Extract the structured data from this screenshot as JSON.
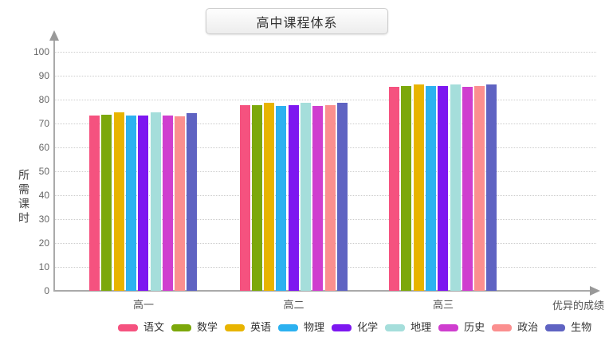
{
  "header": {
    "title": "高中课程体系"
  },
  "chart_data": {
    "type": "bar",
    "title": "高中课程体系",
    "xlabel": "优异的成绩",
    "ylabel": "所需课时",
    "categories": [
      "高一",
      "高二",
      "高三"
    ],
    "series": [
      {
        "name": "语文",
        "color": "#F5527F",
        "values": [
          73.4,
          77.6,
          85.4
        ]
      },
      {
        "name": "数学",
        "color": "#7CA80B",
        "values": [
          73.8,
          77.7,
          85.5
        ]
      },
      {
        "name": "英语",
        "color": "#E8B400",
        "values": [
          74.5,
          78.7,
          86.4
        ]
      },
      {
        "name": "物理",
        "color": "#2CB1F0",
        "values": [
          73.3,
          77.3,
          85.5
        ]
      },
      {
        "name": "化学",
        "color": "#7D17F0",
        "values": [
          73.4,
          77.7,
          85.5
        ]
      },
      {
        "name": "地理",
        "color": "#A5DEDB",
        "values": [
          74.8,
          78.6,
          86.3
        ]
      },
      {
        "name": "历史",
        "color": "#CF3ECF",
        "values": [
          73.3,
          77.3,
          85.4
        ]
      },
      {
        "name": "政治",
        "color": "#FB8F8F",
        "values": [
          73.1,
          77.5,
          85.5
        ]
      },
      {
        "name": "生物",
        "color": "#5F63C2",
        "values": [
          74.2,
          78.5,
          86.4
        ]
      }
    ],
    "y_ticks": [
      0,
      10,
      20,
      30,
      40,
      50,
      60,
      70,
      80,
      90,
      100
    ],
    "ylim": [
      0,
      105
    ],
    "grid": "horizontal-dotted",
    "legend_position": "bottom"
  }
}
